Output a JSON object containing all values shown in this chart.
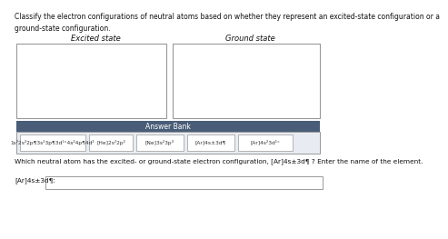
{
  "title_text": "Classify the electron configurations of neutral atoms based on whether they represent an excited-state configuration or a\nground-state configuration.",
  "excited_label": "Excited state",
  "ground_label": "Ground state",
  "answer_bank_label": "Answer Bank",
  "answer_items": [
    "1s²2s²2p¶3s²3p¶3d¹°4s²4p¶4d²",
    "[He]2s²2p²",
    "[Ne]3s²3p³",
    "[Ar]4s±3d¶",
    "[Ar]4s²3d¹°"
  ],
  "question_text": "Which neutral atom has the excited- or ground-state electron configuration, [Ar]4s±3d¶ ? Enter the name of the element.",
  "answer_label": "[Ar]4s±3d¶:",
  "bg_color": "#ffffff",
  "box_border_color": "#999999",
  "answer_bank_header_color": "#4a5d78",
  "answer_bank_bg_color": "#e8ecf2",
  "answer_item_bg": "#ffffff",
  "answer_item_border": "#999999",
  "text_color": "#111111",
  "header_text_color": "#ffffff",
  "answer_text_color": "#333333",
  "title_fontsize": 5.5,
  "label_fontsize": 6.0,
  "item_fontsize": 4.2,
  "question_fontsize": 5.3
}
